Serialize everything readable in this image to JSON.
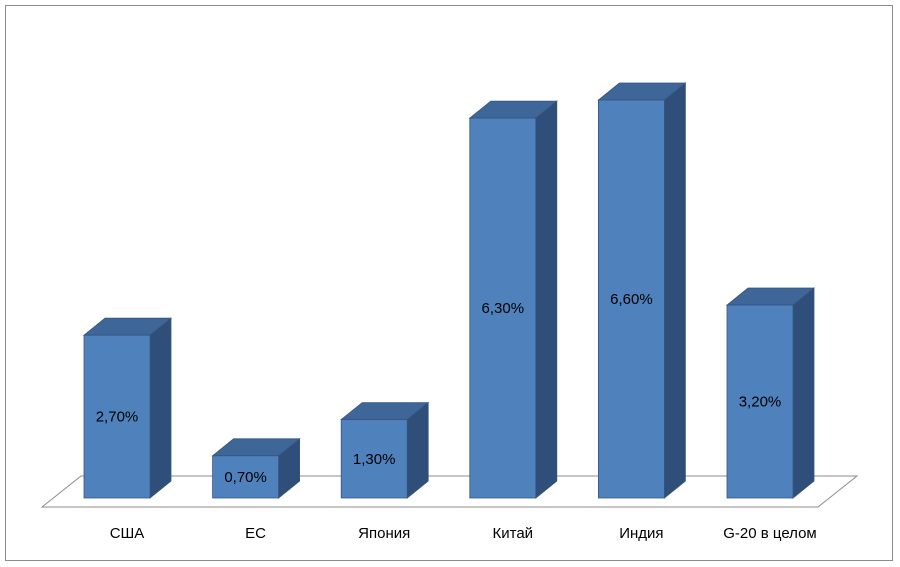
{
  "chart_data": {
    "type": "bar",
    "style": "3d-column",
    "categories": [
      "США",
      "ЕС",
      "Япония",
      "Китай",
      "Индия",
      "G-20 в целом"
    ],
    "values": [
      2.7,
      0.7,
      1.3,
      6.3,
      6.6,
      3.2
    ],
    "data_labels": [
      "2,70%",
      "0,70%",
      "1,30%",
      "6,30%",
      "6,60%",
      "3,20%"
    ],
    "title": "",
    "xlabel": "",
    "ylabel": "",
    "ylim": [
      0,
      7
    ],
    "grid": false,
    "legend": "none",
    "colors": {
      "front": "#4f81bd",
      "side": "#2f4f7a",
      "top": "#3e6698",
      "stroke": "#35567f",
      "floor": "#8c8c8c"
    }
  }
}
